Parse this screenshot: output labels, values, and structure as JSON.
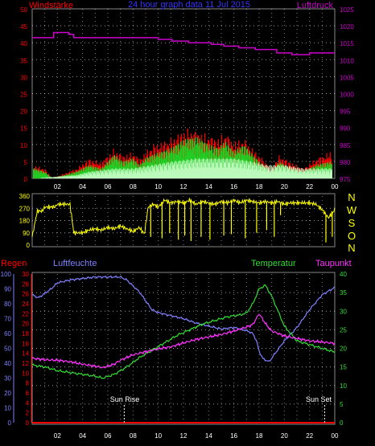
{
  "header": {
    "left_label": "Windstärke",
    "center_title": "24 hour graph data  11 Jul 2015",
    "right_label": "Luftdruck"
  },
  "lower_labels": {
    "regen": "Regen",
    "luftfeuchte": "Luftfeuchte",
    "temperatur": "Temperatur",
    "taupunkt": "Taupunkt",
    "sun_rise": "Sun Rise",
    "sun_set": "Sun Set"
  },
  "compass": [
    "N",
    "W",
    "S",
    "O",
    "N"
  ],
  "colors": {
    "wind_speed": "#22cc22",
    "wind_gust": "#ff0000",
    "wind_avg": "#ccffcc",
    "pressure": "#cc00cc",
    "direction": "#ffff00",
    "humidity": "#8080ff",
    "temperature": "#33dd33",
    "dewpoint": "#ff33ff",
    "rain": "#ff0000",
    "grid": "#ffffff",
    "axis_red": "#ff0000",
    "axis_magenta": "#cc00cc",
    "axis_yellow": "#ffff00",
    "axis_blue": "#8080ff",
    "axis_green": "#33dd33",
    "title": "#3333ff"
  },
  "chart_data": [
    {
      "type": "line",
      "name": "wind",
      "x_tick_labels": [
        "02",
        "04",
        "06",
        "08",
        "10",
        "12",
        "14",
        "16",
        "18",
        "20",
        "22",
        "00"
      ],
      "left_ticks": [
        0,
        5,
        10,
        15,
        20,
        25,
        30,
        35,
        40,
        45,
        50
      ],
      "right_ticks": [
        975,
        980,
        985,
        990,
        995,
        1000,
        1005,
        1010,
        1015,
        1020,
        1025
      ],
      "ylim_left": [
        0,
        50
      ],
      "ylim_right": [
        975,
        1025
      ],
      "x_hours": [
        0,
        24
      ],
      "pressure_steps": [
        [
          0,
          1016.5
        ],
        [
          1.7,
          1018
        ],
        [
          2.9,
          1017.5
        ],
        [
          3.3,
          1016.5
        ],
        [
          10.0,
          1016
        ],
        [
          11.1,
          1015.5
        ],
        [
          12.4,
          1015
        ],
        [
          14.2,
          1014.5
        ],
        [
          15.2,
          1014
        ],
        [
          16.4,
          1013.5
        ],
        [
          17.7,
          1013
        ],
        [
          19.4,
          1012
        ],
        [
          20.6,
          1011.5
        ],
        [
          22.0,
          1012
        ],
        [
          24,
          1012
        ]
      ],
      "wind_envelope": [
        [
          0.1,
          3
        ],
        [
          1.0,
          2
        ],
        [
          1.6,
          0
        ],
        [
          3.5,
          2
        ],
        [
          4.5,
          4
        ],
        [
          5.5,
          3
        ],
        [
          6.0,
          5
        ],
        [
          6.5,
          7
        ],
        [
          7.2,
          5
        ],
        [
          8.0,
          6
        ],
        [
          8.5,
          4
        ],
        [
          9.0,
          6
        ],
        [
          9.5,
          7
        ],
        [
          10.3,
          8
        ],
        [
          11.0,
          9
        ],
        [
          11.8,
          11
        ],
        [
          12.5,
          12
        ],
        [
          13.2,
          12
        ],
        [
          14.0,
          10
        ],
        [
          14.8,
          9
        ],
        [
          15.3,
          11
        ],
        [
          16.0,
          8
        ],
        [
          16.8,
          10
        ],
        [
          17.5,
          7
        ],
        [
          18.3,
          4
        ],
        [
          19.0,
          2
        ],
        [
          19.6,
          5
        ],
        [
          20.5,
          3
        ],
        [
          21.5,
          2
        ],
        [
          22.5,
          4
        ],
        [
          23.6,
          5
        ]
      ],
      "gust_envelope": [
        [
          0.1,
          4
        ],
        [
          1.0,
          3
        ],
        [
          1.6,
          0
        ],
        [
          3.5,
          3
        ],
        [
          4.5,
          6
        ],
        [
          5.5,
          5
        ],
        [
          6.0,
          7
        ],
        [
          6.5,
          9
        ],
        [
          7.2,
          7
        ],
        [
          8.0,
          8
        ],
        [
          8.5,
          6
        ],
        [
          9.0,
          8
        ],
        [
          9.5,
          10
        ],
        [
          10.3,
          11
        ],
        [
          11.0,
          12
        ],
        [
          11.8,
          14
        ],
        [
          12.5,
          15
        ],
        [
          13.2,
          14
        ],
        [
          14.0,
          13
        ],
        [
          14.8,
          12
        ],
        [
          15.3,
          14
        ],
        [
          16.0,
          11
        ],
        [
          16.8,
          12
        ],
        [
          17.5,
          9
        ],
        [
          18.3,
          6
        ],
        [
          19.0,
          3
        ],
        [
          19.6,
          7
        ],
        [
          20.5,
          5
        ],
        [
          21.5,
          3
        ],
        [
          22.5,
          6
        ],
        [
          23.6,
          8
        ]
      ],
      "avg_wind_steps": [
        [
          0,
          0
        ],
        [
          3.5,
          1
        ],
        [
          4.5,
          2
        ],
        [
          6.5,
          3
        ],
        [
          8.0,
          3
        ],
        [
          9.5,
          4
        ],
        [
          11.0,
          5
        ],
        [
          13.0,
          6
        ],
        [
          14.5,
          6
        ],
        [
          16.0,
          6
        ],
        [
          17.5,
          5
        ],
        [
          18.5,
          4
        ],
        [
          20.0,
          4
        ],
        [
          21.5,
          3
        ],
        [
          22.5,
          3
        ],
        [
          24,
          3
        ]
      ]
    },
    {
      "type": "line",
      "name": "wind direction",
      "x_hours": [
        0,
        24
      ],
      "ylim": [
        0,
        360
      ],
      "ticks": [
        0,
        90,
        180,
        270,
        360
      ],
      "direction_trace": [
        [
          0.0,
          60
        ],
        [
          0.4,
          250
        ],
        [
          0.8,
          250
        ],
        [
          1.0,
          280
        ],
        [
          1.8,
          280
        ],
        [
          2.0,
          300
        ],
        [
          3.0,
          300
        ],
        [
          3.3,
          90
        ],
        [
          4.0,
          90
        ],
        [
          4.5,
          110
        ],
        [
          5.0,
          120
        ],
        [
          5.5,
          110
        ],
        [
          6.0,
          130
        ],
        [
          6.5,
          120
        ],
        [
          7.0,
          140
        ],
        [
          7.5,
          120
        ],
        [
          8.0,
          100
        ],
        [
          8.5,
          130
        ],
        [
          8.9,
          80
        ],
        [
          9.2,
          280
        ],
        [
          9.6,
          300
        ],
        [
          10.0,
          280
        ],
        [
          10.5,
          330
        ],
        [
          11.0,
          310
        ],
        [
          11.5,
          320
        ],
        [
          12.0,
          310
        ],
        [
          12.5,
          330
        ],
        [
          13.0,
          300
        ],
        [
          13.5,
          320
        ],
        [
          14.0,
          310
        ],
        [
          14.5,
          300
        ],
        [
          15.0,
          320
        ],
        [
          15.5,
          310
        ],
        [
          16.0,
          330
        ],
        [
          16.5,
          310
        ],
        [
          17.0,
          330
        ],
        [
          17.5,
          320
        ],
        [
          18.0,
          310
        ],
        [
          18.5,
          320
        ],
        [
          19.0,
          310
        ],
        [
          19.5,
          320
        ],
        [
          20.0,
          300
        ],
        [
          20.5,
          310
        ],
        [
          21.0,
          310
        ],
        [
          21.5,
          310
        ],
        [
          22.0,
          310
        ],
        [
          22.5,
          300
        ],
        [
          23.0,
          260
        ],
        [
          23.5,
          200
        ],
        [
          24.0,
          260
        ]
      ],
      "direction_drops": [
        [
          9.4,
          60
        ],
        [
          10.3,
          50
        ],
        [
          10.9,
          90
        ],
        [
          11.6,
          40
        ],
        [
          12.1,
          70
        ],
        [
          12.6,
          30
        ],
        [
          13.4,
          60
        ],
        [
          14.1,
          40
        ],
        [
          15.2,
          70
        ],
        [
          15.8,
          80
        ],
        [
          16.9,
          50
        ],
        [
          17.8,
          90
        ],
        [
          18.6,
          110
        ],
        [
          19.2,
          60
        ],
        [
          19.7,
          220
        ],
        [
          23.3,
          20
        ],
        [
          23.8,
          60
        ]
      ]
    },
    {
      "type": "line",
      "name": "temperature humidity",
      "x_hours": [
        0,
        24
      ],
      "humidity_ticks": [
        0,
        10,
        20,
        30,
        40,
        50,
        60,
        70,
        80,
        90,
        100
      ],
      "dewpoint_ticks": [
        0,
        2,
        4,
        6,
        8,
        10,
        12,
        14,
        16,
        18,
        20,
        22,
        24,
        26,
        28,
        30
      ],
      "temperature_ticks": [
        0,
        5,
        10,
        15,
        20,
        25,
        30,
        35,
        40
      ],
      "ylim_humidity": [
        0,
        100
      ],
      "ylim_dewpoint": [
        0,
        30
      ],
      "ylim_temperature": [
        0,
        40
      ],
      "humidity": [
        [
          0,
          86
        ],
        [
          0.5,
          84
        ],
        [
          1.0,
          87
        ],
        [
          1.5,
          90
        ],
        [
          2.0,
          94
        ],
        [
          3.0,
          96
        ],
        [
          4.0,
          97
        ],
        [
          5.0,
          98
        ],
        [
          6.0,
          98
        ],
        [
          7.0,
          98
        ],
        [
          7.5,
          96
        ],
        [
          8.0,
          92
        ],
        [
          8.5,
          88
        ],
        [
          9.0,
          82
        ],
        [
          9.5,
          76
        ],
        [
          10.0,
          74
        ],
        [
          11.0,
          72
        ],
        [
          12.0,
          70
        ],
        [
          13.0,
          67
        ],
        [
          14.0,
          65
        ],
        [
          15.0,
          63
        ],
        [
          16.0,
          64
        ],
        [
          17.0,
          62
        ],
        [
          17.5,
          60
        ],
        [
          17.8,
          55
        ],
        [
          18.0,
          48
        ],
        [
          18.3,
          43
        ],
        [
          18.8,
          41
        ],
        [
          19.3,
          47
        ],
        [
          20.0,
          55
        ],
        [
          21.0,
          64
        ],
        [
          22.0,
          76
        ],
        [
          23.0,
          86
        ],
        [
          24.0,
          91
        ]
      ],
      "dewpoint": [
        [
          0,
          13.0
        ],
        [
          1.0,
          12.7
        ],
        [
          2.0,
          12.6
        ],
        [
          3.0,
          12.3
        ],
        [
          4.0,
          11.8
        ],
        [
          5.0,
          11.4
        ],
        [
          5.6,
          11.1
        ],
        [
          6.5,
          11.8
        ],
        [
          7.0,
          12.6
        ],
        [
          8.0,
          13.7
        ],
        [
          9.0,
          14.3
        ],
        [
          10.0,
          14.9
        ],
        [
          11.0,
          15.3
        ],
        [
          12.0,
          16.1
        ],
        [
          13.0,
          16.8
        ],
        [
          14.0,
          17.3
        ],
        [
          15.0,
          17.8
        ],
        [
          16.0,
          18.5
        ],
        [
          17.0,
          19.3
        ],
        [
          17.5,
          19.8
        ],
        [
          18.0,
          22.0
        ],
        [
          18.5,
          20.0
        ],
        [
          19.0,
          18.5
        ],
        [
          20.0,
          17.5
        ],
        [
          21.0,
          17.0
        ],
        [
          22.0,
          16.5
        ],
        [
          23.0,
          16.3
        ],
        [
          24.0,
          16.0
        ]
      ],
      "temperature": [
        [
          0,
          15.5
        ],
        [
          1.0,
          15.0
        ],
        [
          2.0,
          14.0
        ],
        [
          3.0,
          13.5
        ],
        [
          4.0,
          13.0
        ],
        [
          5.0,
          12.5
        ],
        [
          5.6,
          12.0
        ],
        [
          6.5,
          13.0
        ],
        [
          7.5,
          15.0
        ],
        [
          8.5,
          17.5
        ],
        [
          9.5,
          19.5
        ],
        [
          10.5,
          21.5
        ],
        [
          11.5,
          23.5
        ],
        [
          12.5,
          25.0
        ],
        [
          13.5,
          26.5
        ],
        [
          14.5,
          27.5
        ],
        [
          15.5,
          28.5
        ],
        [
          16.5,
          29.0
        ],
        [
          17.0,
          29.5
        ],
        [
          17.5,
          32.0
        ],
        [
          18.0,
          36.0
        ],
        [
          18.5,
          37.0
        ],
        [
          19.0,
          34.0
        ],
        [
          19.5,
          30.0
        ],
        [
          20.0,
          26.0
        ],
        [
          21.0,
          22.0
        ],
        [
          22.0,
          21.0
        ],
        [
          23.0,
          20.0
        ],
        [
          24.0,
          19.0
        ]
      ],
      "rain": [
        [
          0,
          0
        ],
        [
          24,
          0
        ]
      ],
      "sun_rise_hour": 7.3,
      "sun_set_hour": 23.2
    }
  ]
}
